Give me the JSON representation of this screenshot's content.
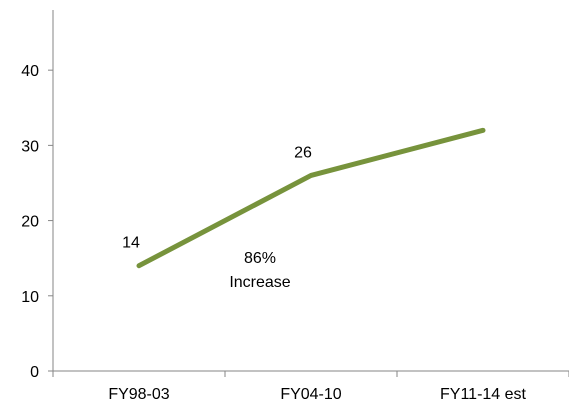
{
  "chart_data": {
    "type": "line",
    "categories": [
      "FY98-03",
      "FY04-10",
      "FY11-14 est"
    ],
    "series": [
      {
        "values": [
          14,
          26,
          32
        ]
      }
    ],
    "data_labels": [
      "14",
      "26",
      ""
    ],
    "annotation_lines": [
      "86%",
      "Increase"
    ],
    "yticks": [
      "0",
      "10",
      "20",
      "30",
      "40"
    ],
    "ylim": [
      0,
      48
    ],
    "title": "",
    "xlabel": "",
    "ylabel": "",
    "grid": false,
    "legend": "none",
    "line_color": "#77933c"
  }
}
